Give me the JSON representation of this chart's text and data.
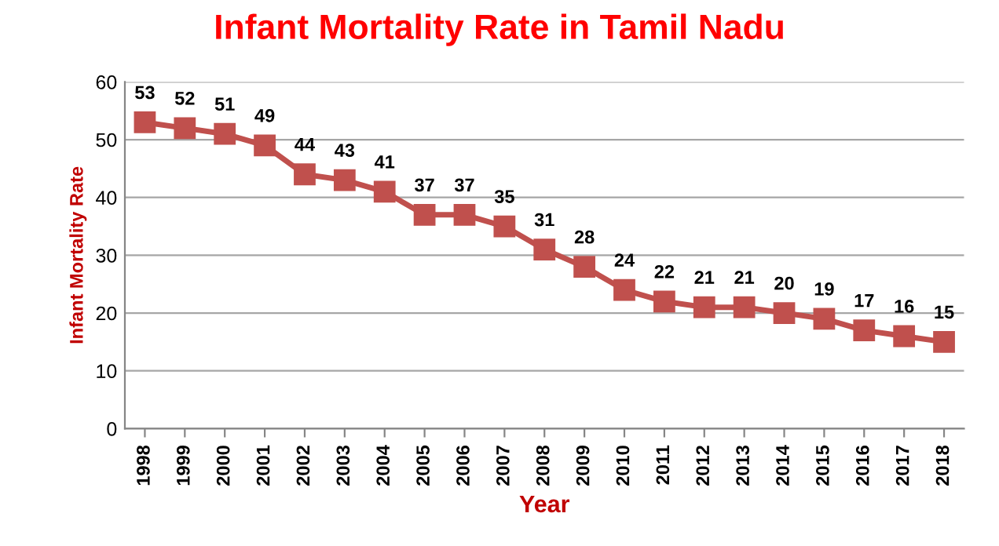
{
  "chart_data": {
    "type": "line",
    "title": "Infant Mortality Rate in Tamil Nadu",
    "xlabel": "Year",
    "ylabel": "Infant Mortality Rate",
    "categories": [
      "1998",
      "1999",
      "2000",
      "2001",
      "2002",
      "2003",
      "2004",
      "2005",
      "2006",
      "2007",
      "2008",
      "2009",
      "2010",
      "2011",
      "2012",
      "2013",
      "2014",
      "2015",
      "2016",
      "2017",
      "2018"
    ],
    "series": [
      {
        "color": "#c0504d",
        "values": [
          53,
          52,
          51,
          49,
          44,
          43,
          41,
          37,
          37,
          35,
          31,
          28,
          24,
          22,
          21,
          21,
          20,
          19,
          17,
          16,
          15
        ]
      }
    ],
    "ylim": [
      0,
      60
    ],
    "yticks": [
      0,
      10,
      20,
      30,
      40,
      50,
      60
    ],
    "grid": "y",
    "marker": "square",
    "line_style": "solid",
    "data_labels": true,
    "legend": false
  }
}
